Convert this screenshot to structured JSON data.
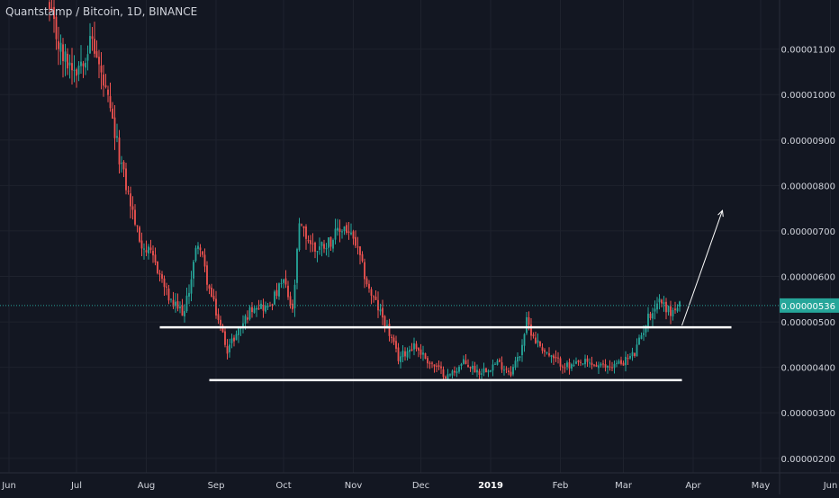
{
  "chart_data": {
    "type": "candlestick",
    "title": "Quantstamp / Bitcoin, 1D, BINANCE",
    "x_ticks": [
      "Jun",
      "Jul",
      "Aug",
      "Sep",
      "Oct",
      "Nov",
      "Dec",
      "2019",
      "Feb",
      "Mar",
      "Apr",
      "May",
      "Jun"
    ],
    "y_ticks": [
      "0.00000200",
      "0.00000300",
      "0.00000400",
      "0.00000500",
      "0.00000600",
      "0.00000700",
      "0.00000800",
      "0.00000900",
      "0.00001000",
      "0.00001100"
    ],
    "ylim": [
      1.68e-06,
      1.208e-05
    ],
    "current_price": 5.36e-06,
    "current_price_label": "0.00000536",
    "colors": {
      "up": "#26a69a",
      "down": "#ef5350",
      "background": "#131722",
      "price_line": "#26a69a"
    },
    "anchors": [
      [
        "2018-06-19",
        1.18e-05
      ],
      [
        "2018-06-25",
        1.08e-05
      ],
      [
        "2018-07-01",
        1.06e-05
      ],
      [
        "2018-07-08",
        1.12e-05
      ],
      [
        "2018-07-15",
        9.8e-06
      ],
      [
        "2018-07-22",
        8.2e-06
      ],
      [
        "2018-07-29",
        6.8e-06
      ],
      [
        "2018-08-05",
        6.3e-06
      ],
      [
        "2018-08-12",
        5.4e-06
      ],
      [
        "2018-08-18",
        5.2e-06
      ],
      [
        "2018-08-24",
        6.8e-06
      ],
      [
        "2018-08-29",
        5.7e-06
      ],
      [
        "2018-09-06",
        4.4e-06
      ],
      [
        "2018-09-12",
        4.9e-06
      ],
      [
        "2018-09-18",
        5.4e-06
      ],
      [
        "2018-09-24",
        5.3e-06
      ],
      [
        "2018-10-01",
        5.9e-06
      ],
      [
        "2018-10-05",
        5.2e-06
      ],
      [
        "2018-10-08",
        7.1e-06
      ],
      [
        "2018-10-15",
        6.6e-06
      ],
      [
        "2018-10-22",
        6.8e-06
      ],
      [
        "2018-10-28",
        7.1e-06
      ],
      [
        "2018-11-02",
        6.7e-06
      ],
      [
        "2018-11-08",
        5.7e-06
      ],
      [
        "2018-11-15",
        5e-06
      ],
      [
        "2018-11-21",
        4.2e-06
      ],
      [
        "2018-11-28",
        4.5e-06
      ],
      [
        "2018-12-05",
        4.1e-06
      ],
      [
        "2018-12-13",
        3.8e-06
      ],
      [
        "2018-12-20",
        4.1e-06
      ],
      [
        "2018-12-27",
        3.9e-06
      ],
      [
        "2019-01-04",
        4.1e-06
      ],
      [
        "2019-01-10",
        3.9e-06
      ],
      [
        "2019-01-14",
        4.3e-06
      ],
      [
        "2019-01-17",
        5e-06
      ],
      [
        "2019-01-21",
        4.6e-06
      ],
      [
        "2019-01-28",
        4.2e-06
      ],
      [
        "2019-02-05",
        4e-06
      ],
      [
        "2019-02-12",
        4.1e-06
      ],
      [
        "2019-02-20",
        4e-06
      ],
      [
        "2019-02-28",
        4.1e-06
      ],
      [
        "2019-03-06",
        4.3e-06
      ],
      [
        "2019-03-12",
        5.1e-06
      ],
      [
        "2019-03-17",
        5.5e-06
      ],
      [
        "2019-03-22",
        5.2e-06
      ],
      [
        "2019-03-26",
        5.36e-06
      ]
    ],
    "annotations": [
      {
        "type": "hline",
        "y": 4.88e-06,
        "x_start": "2018-08-07",
        "x_end": "2019-04-18"
      },
      {
        "type": "hline",
        "y": 3.72e-06,
        "x_start": "2018-08-29",
        "x_end": "2019-03-27"
      },
      {
        "type": "arrow",
        "from": [
          "2019-03-27",
          4.92e-06
        ],
        "to": [
          "2019-04-14",
          7.45e-06
        ]
      }
    ]
  }
}
